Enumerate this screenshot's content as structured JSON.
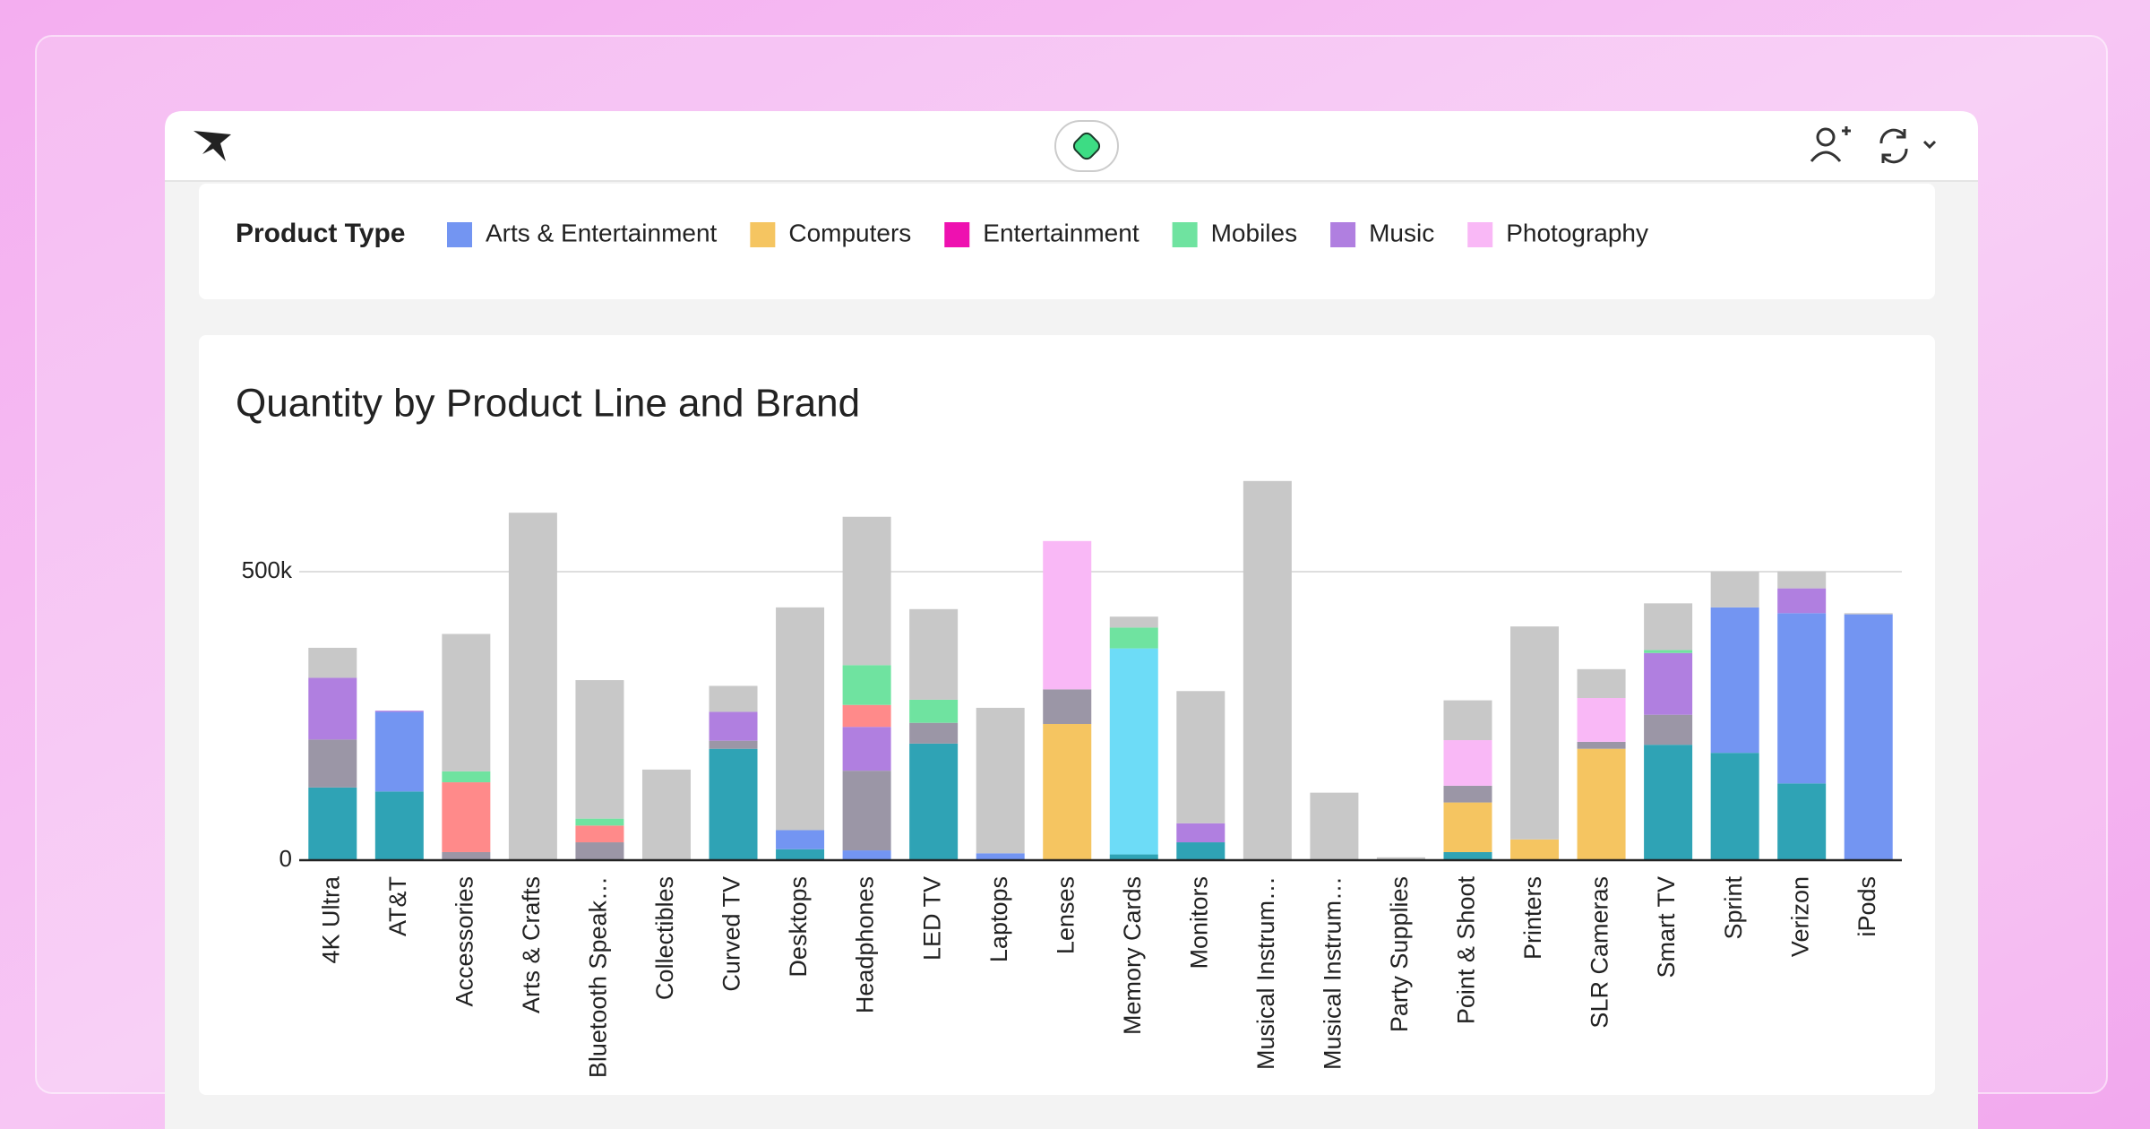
{
  "legend": {
    "title": "Product Type",
    "items": [
      {
        "name": "Arts & Entertainment",
        "color": "#7395f2"
      },
      {
        "name": "Computers",
        "color": "#f5c561"
      },
      {
        "name": "Entertainment",
        "color": "#ee11b0"
      },
      {
        "name": "Mobiles",
        "color": "#6fe3a0"
      },
      {
        "name": "Music",
        "color": "#b07fe0"
      },
      {
        "name": "Photography",
        "color": "#f9b8f6"
      }
    ]
  },
  "chart_data": {
    "type": "stacked_bar",
    "title": "Quantity by Product Line and Brand",
    "categories": [
      "4K Ultra",
      "AT&T",
      "Accessories",
      "Arts & Crafts",
      "Bluetooth Speak…",
      "Collectibles",
      "Curved TV",
      "Desktops",
      "Headphones",
      "LED TV",
      "Laptops",
      "Lenses",
      "Memory Cards",
      "Monitors",
      "Musical Instrum…",
      "Musical Instrum…",
      "Party Supplies",
      "Point & Shoot",
      "Printers",
      "SLR Cameras",
      "Smart TV",
      "Sprint",
      "Verizon",
      "iPods"
    ],
    "series": [
      {
        "color": "#2fa3b5",
        "values": [
          126000,
          119000,
          0,
          0,
          0,
          0,
          193000,
          19000,
          0,
          202000,
          0,
          0,
          10000,
          31000,
          0,
          0,
          0,
          14000,
          0,
          0,
          200000,
          186000,
          133000,
          0
        ]
      },
      {
        "color": "#7395f2",
        "values": [
          0,
          138000,
          0,
          0,
          0,
          0,
          0,
          33000,
          17000,
          0,
          12000,
          0,
          0,
          0,
          0,
          0,
          0,
          0,
          0,
          0,
          0,
          252000,
          295000,
          426000
        ]
      },
      {
        "color": "#f5c561",
        "values": [
          0,
          0,
          0,
          0,
          0,
          0,
          0,
          0,
          0,
          0,
          0,
          236000,
          0,
          0,
          0,
          0,
          0,
          86000,
          36000,
          193000,
          0,
          0,
          0,
          0
        ]
      },
      {
        "color": "#9b96a6",
        "values": [
          83000,
          0,
          14000,
          0,
          31000,
          0,
          14000,
          0,
          138000,
          36000,
          0,
          60000,
          0,
          0,
          0,
          0,
          0,
          29000,
          0,
          12000,
          52000,
          0,
          0,
          0
        ]
      },
      {
        "color": "#b07fe0",
        "values": [
          107000,
          2000,
          0,
          0,
          0,
          0,
          50000,
          0,
          76000,
          0,
          0,
          0,
          0,
          33000,
          0,
          0,
          0,
          0,
          0,
          0,
          107000,
          0,
          43000,
          0
        ]
      },
      {
        "color": "#ff8a8a",
        "values": [
          0,
          0,
          121000,
          0,
          29000,
          0,
          0,
          0,
          38000,
          0,
          0,
          0,
          0,
          0,
          0,
          0,
          0,
          0,
          0,
          0,
          0,
          0,
          0,
          0
        ]
      },
      {
        "color": "#6ddcf7",
        "values": [
          0,
          0,
          0,
          0,
          0,
          0,
          0,
          0,
          0,
          0,
          0,
          0,
          357000,
          0,
          0,
          0,
          0,
          0,
          0,
          0,
          0,
          0,
          0,
          0
        ]
      },
      {
        "color": "#6fe3a0",
        "values": [
          0,
          0,
          19000,
          0,
          12000,
          0,
          0,
          0,
          69000,
          40000,
          0,
          0,
          36000,
          0,
          0,
          0,
          0,
          0,
          0,
          0,
          5000,
          0,
          0,
          0
        ]
      },
      {
        "color": "#f9b8f6",
        "values": [
          0,
          0,
          0,
          0,
          0,
          0,
          0,
          0,
          0,
          0,
          0,
          257000,
          0,
          0,
          0,
          0,
          0,
          79000,
          0,
          76000,
          0,
          0,
          0,
          0
        ]
      },
      {
        "color": "#c8c8c8",
        "values": [
          52000,
          0,
          238000,
          602000,
          240000,
          157000,
          45000,
          386000,
          257000,
          157000,
          252000,
          0,
          19000,
          229000,
          657000,
          117000,
          5000,
          69000,
          369000,
          50000,
          81000,
          62000,
          29000,
          2000
        ]
      }
    ],
    "ylim": [
      0,
      680000
    ],
    "yticks": [
      0,
      {
        "value": 500000,
        "label": "500k"
      }
    ],
    "grid": true
  }
}
